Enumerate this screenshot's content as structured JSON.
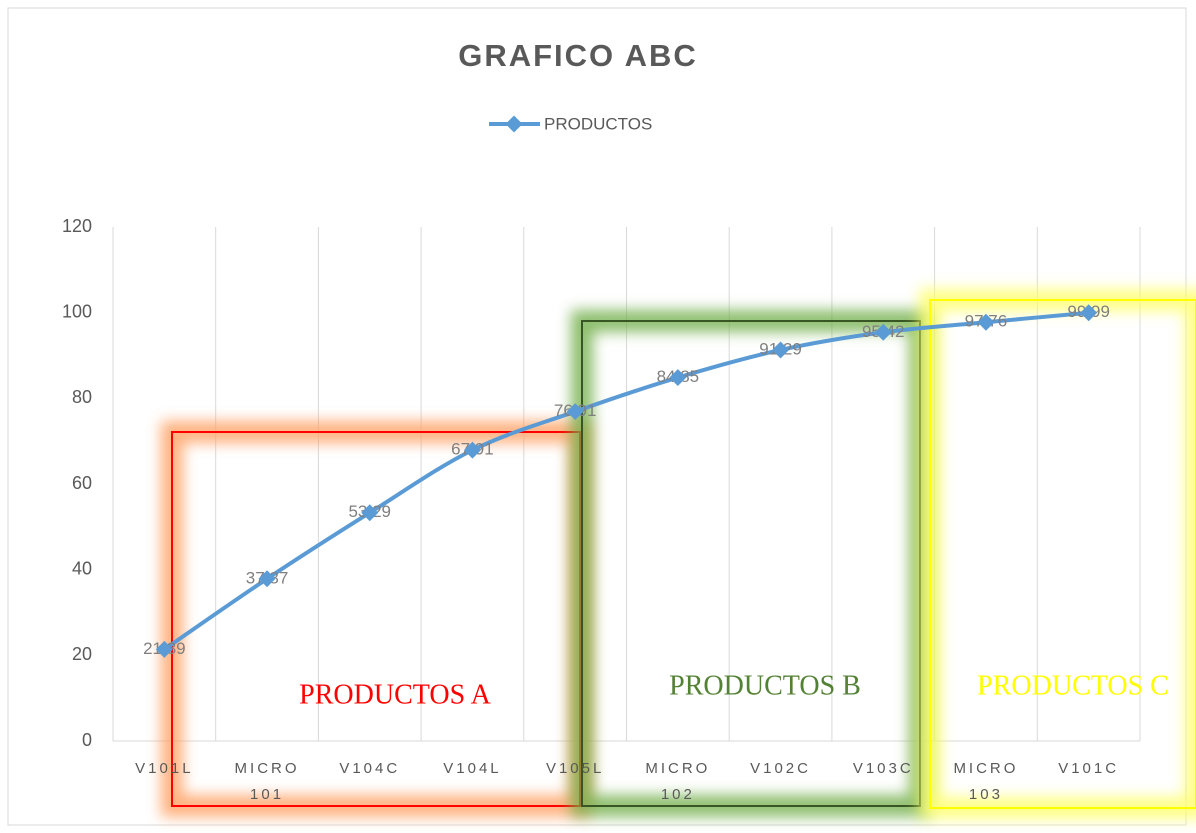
{
  "chart_data": {
    "type": "line",
    "title": "GRAFICO ABC",
    "categories": [
      "V101L",
      "MICRO 101",
      "V104C",
      "V104L",
      "V105L",
      "MICRO 102",
      "V102C",
      "V103C",
      "MICRO 103",
      "V101C"
    ],
    "series": [
      {
        "name": "PRODUCTOS",
        "color": "#5b9bd5",
        "values": [
          21.39,
          37.87,
          53.29,
          67.91,
          76.91,
          84.85,
          91.29,
          95.42,
          97.76,
          99.99
        ],
        "value_labels": [
          "21,39",
          "37,87",
          "53,29",
          "67,91",
          "76,91",
          "84,85",
          "91,29",
          "95,42",
          "97,76",
          "99,99"
        ]
      }
    ],
    "ylim": [
      0,
      120
    ],
    "yticks": [
      0,
      20,
      40,
      60,
      80,
      100,
      120
    ],
    "grid": "x",
    "legend": "top",
    "annotations": [
      "PRODUCTOS A",
      "PRODUCTOS B",
      "PRODUCTOS C"
    ]
  }
}
